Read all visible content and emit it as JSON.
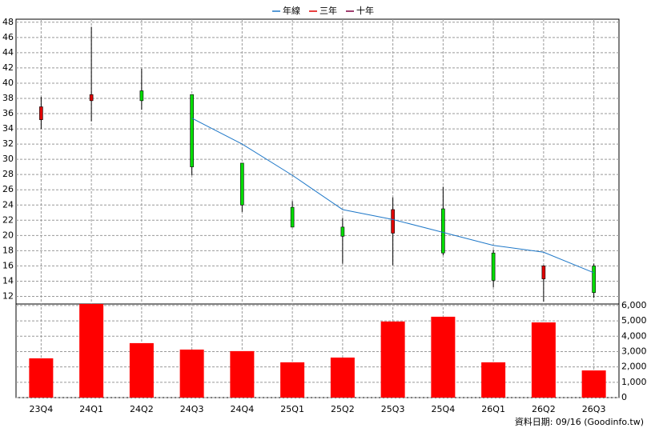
{
  "chart_data": [
    {
      "type": "candlestick",
      "open": [
        35.2,
        37.7,
        39.0,
        38.5,
        29.5,
        23.7,
        21.1,
        20.3,
        23.5,
        17.7,
        14.3,
        16.0
      ],
      "high": [
        38.2,
        47.4,
        41.9,
        38.5,
        29.5,
        24.5,
        22.3,
        25.0,
        26.4,
        18.1,
        16.1,
        16.3
      ],
      "low": [
        34.0,
        35.0,
        36.5,
        27.9,
        23.1,
        21.1,
        16.3,
        16.1,
        17.4,
        13.2,
        11.3,
        11.8
      ],
      "close": [
        36.9,
        38.5,
        37.7,
        29.0,
        24.0,
        21.1,
        19.9,
        23.4,
        17.7,
        14.1,
        16.0,
        12.5
      ],
      "up_color": "#e00000",
      "down_color": "#00dd00",
      "series": [
        {
          "name": "年線",
          "color": "#1f78c8",
          "values": [
            null,
            null,
            null,
            35.4,
            32.0,
            27.9,
            23.4,
            22.1,
            20.4,
            18.7,
            17.8,
            15.1
          ]
        },
        {
          "name": "三年",
          "color": "#e00000",
          "values": [
            null,
            null,
            null,
            null,
            null,
            null,
            null,
            null,
            null,
            null,
            null,
            null
          ]
        },
        {
          "name": "十年",
          "color": "#800040",
          "values": [
            null,
            null,
            null,
            null,
            null,
            null,
            null,
            null,
            null,
            null,
            null,
            null
          ]
        }
      ],
      "ylim": [
        11,
        48.4
      ],
      "yticks": [
        12,
        14,
        16,
        18,
        20,
        22,
        24,
        26,
        28,
        30,
        32,
        34,
        36,
        38,
        40,
        42,
        44,
        46,
        48
      ],
      "grid": true
    },
    {
      "type": "bar",
      "categories": [
        "23Q4",
        "24Q1",
        "24Q2",
        "24Q3",
        "24Q4",
        "25Q1",
        "25Q2",
        "25Q3",
        "25Q4",
        "26Q1",
        "26Q2",
        "26Q3"
      ],
      "values": [
        2560,
        6100,
        3550,
        3130,
        3030,
        2300,
        2610,
        4960,
        5270,
        2300,
        4900,
        1770
      ],
      "color": "#ff0000",
      "ylim": [
        0,
        6100
      ],
      "yticks": [
        0,
        {
          "value": 1000,
          "label": "1,000"
        },
        {
          "value": 2000,
          "label": "2,000"
        },
        {
          "value": 3000,
          "label": "3,000"
        },
        {
          "value": 4000,
          "label": "4,000"
        },
        {
          "value": 5000,
          "label": "5,000"
        },
        {
          "value": 6000,
          "label": "6,000"
        }
      ],
      "grid": true,
      "footnote": "資料日期: 09/16 (Goodinfo.tw)"
    }
  ]
}
